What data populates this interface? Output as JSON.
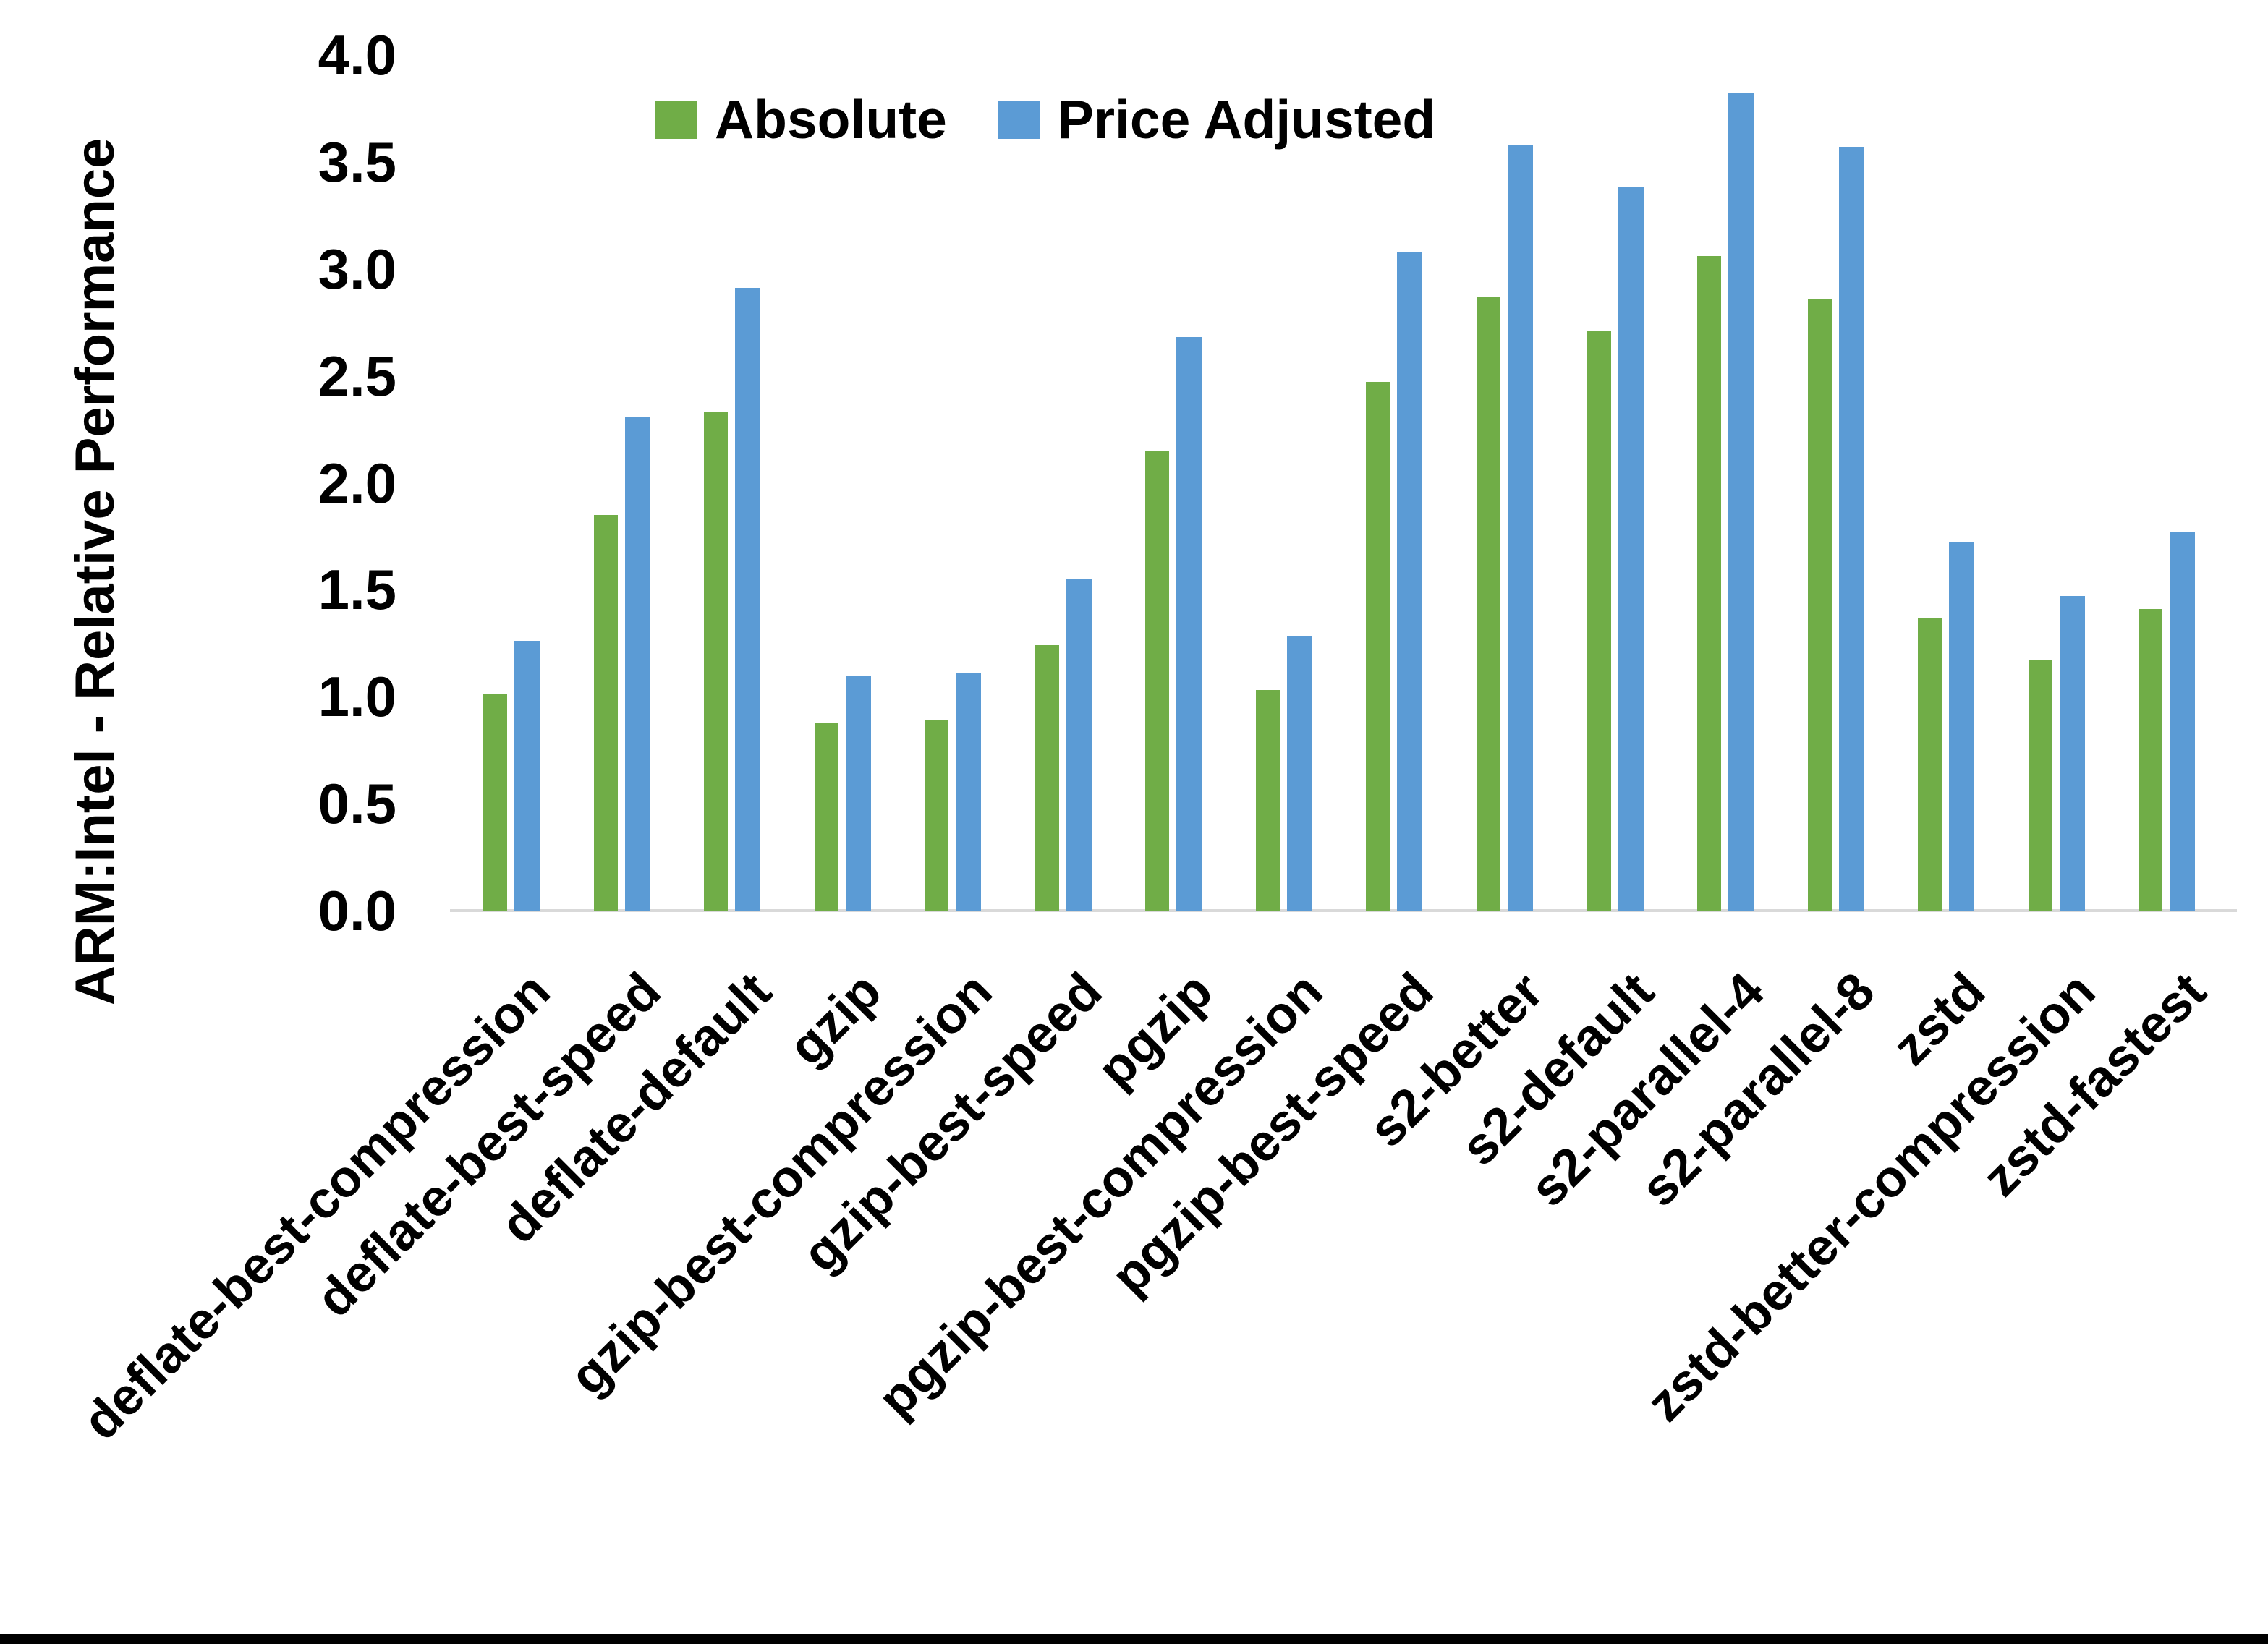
{
  "chart_data": {
    "type": "bar",
    "title": "",
    "xlabel": "",
    "ylabel": "ARM:Intel - Relative Performance",
    "ylim": [
      0.0,
      4.0
    ],
    "ytick_labels": [
      "0.0",
      "0.5",
      "1.0",
      "1.5",
      "2.0",
      "2.5",
      "3.0",
      "3.5",
      "4.0"
    ],
    "grid": false,
    "legend_position": "top",
    "axis_line_color": "#d9d9d9",
    "categories": [
      "deflate-best-compression",
      "deflate-best-speed",
      "deflate-default",
      "gzip",
      "gzip-best-compression",
      "gzip-best-speed",
      "pgzip",
      "pgzip-best-compression",
      "pgzip-best-speed",
      "s2-better",
      "s2-default",
      "s2-parallel-4",
      "s2-parallel-8",
      "zstd",
      "zstd-better-compression",
      "zstd-fastest"
    ],
    "series": [
      {
        "name": "Absolute",
        "color": "#70ad47",
        "values": [
          1.01,
          1.85,
          2.33,
          0.88,
          0.89,
          1.24,
          2.15,
          1.03,
          2.47,
          2.87,
          2.71,
          3.06,
          2.86,
          1.37,
          1.17,
          1.41
        ]
      },
      {
        "name": "Price Adjusted",
        "color": "#5b9bd5",
        "values": [
          1.26,
          2.31,
          2.91,
          1.1,
          1.11,
          1.55,
          2.68,
          1.28,
          3.08,
          3.58,
          3.38,
          3.82,
          3.57,
          1.72,
          1.47,
          1.77
        ]
      }
    ]
  }
}
